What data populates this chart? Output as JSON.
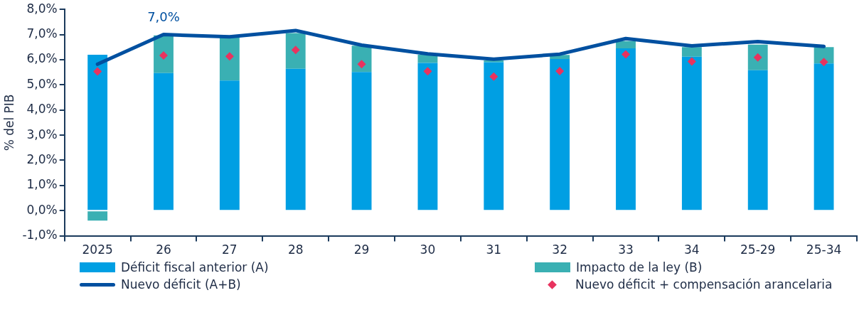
{
  "chart_data": {
    "type": "bar",
    "stacked": true,
    "ylabel": "% del PIB",
    "categories": [
      "2025",
      "26",
      "27",
      "28",
      "29",
      "30",
      "31",
      "32",
      "33",
      "34",
      "25-29",
      "25-34"
    ],
    "series": [
      {
        "name": "Déficit fiscal anterior (A)",
        "color": "#009fe3",
        "values": [
          6.2,
          5.47,
          5.17,
          5.64,
          5.51,
          5.87,
          5.9,
          6.03,
          6.45,
          6.12,
          5.58,
          5.85
        ]
      },
      {
        "name": "Impacto de la ley (B)",
        "color": "#3ab0b3",
        "values": [
          -0.4,
          1.5,
          1.71,
          1.42,
          1.05,
          0.33,
          0.07,
          0.16,
          0.29,
          0.38,
          1.02,
          0.65
        ]
      },
      {
        "name": "Nuevo déficit (A+B)",
        "type": "line",
        "color": "#0050a0",
        "marker": "none",
        "values": [
          5.82,
          7.0,
          6.91,
          7.16,
          6.58,
          6.23,
          6.02,
          6.22,
          6.84,
          6.55,
          6.72,
          6.53
        ]
      },
      {
        "name": "Nuevo déficit + compensación arancelaria",
        "type": "scatter",
        "color": "#e8335f",
        "marker": "diamond",
        "values": [
          5.53,
          6.17,
          6.13,
          6.39,
          5.82,
          5.54,
          5.33,
          5.55,
          6.21,
          5.93,
          6.09,
          5.91
        ]
      }
    ],
    "ylim": [
      -1,
      8
    ],
    "yticks": [
      {
        "value": -1,
        "label": "-1,0%"
      },
      {
        "value": 0,
        "label": "0,0%"
      },
      {
        "value": 1,
        "label": "1,0%"
      },
      {
        "value": 2,
        "label": "2,0%"
      },
      {
        "value": 3,
        "label": "3,0%"
      },
      {
        "value": 4,
        "label": "4,0%"
      },
      {
        "value": 5,
        "label": "5,0%"
      },
      {
        "value": 6,
        "label": "6,0%"
      },
      {
        "value": 7,
        "label": "7,0%"
      },
      {
        "value": 8,
        "label": "8,0%"
      }
    ],
    "grid": false,
    "legend": "bottom",
    "annotations": [
      {
        "text": "7,0%",
        "x": "26",
        "y": 7.0
      }
    ]
  }
}
